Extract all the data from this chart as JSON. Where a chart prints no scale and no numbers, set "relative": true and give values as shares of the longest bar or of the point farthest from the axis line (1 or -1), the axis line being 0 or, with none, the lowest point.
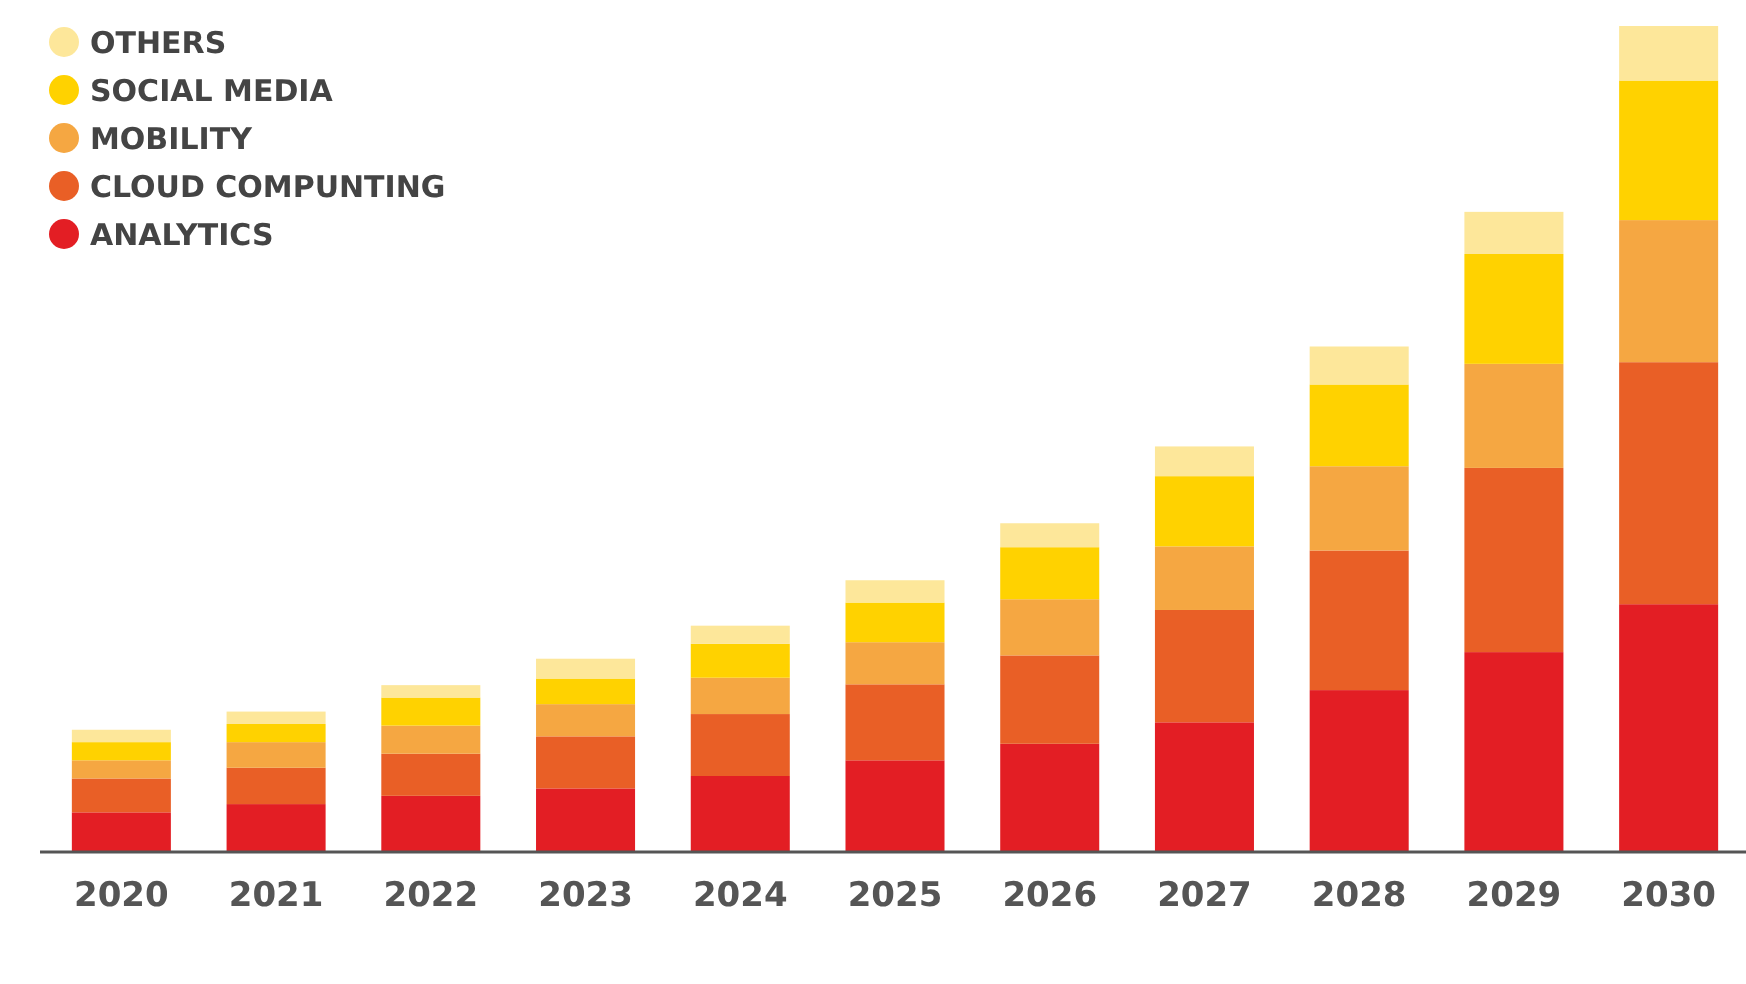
{
  "chart_data": {
    "type": "bar",
    "stacked": true,
    "relative": true,
    "legend": "top left",
    "categories": [
      "2020",
      "2021",
      "2022",
      "2023",
      "2024",
      "2025",
      "2026",
      "2027",
      "2028",
      "2029",
      "2030"
    ],
    "series": [
      {
        "name": "ANALYTICS",
        "color": "#e31e24",
        "values": [
          0.048,
          0.058,
          0.068,
          0.077,
          0.092,
          0.111,
          0.131,
          0.157,
          0.196,
          0.242,
          0.3
        ]
      },
      {
        "name": "CLOUD COMPUNTING",
        "color": "#e95f26",
        "values": [
          0.041,
          0.044,
          0.051,
          0.063,
          0.075,
          0.092,
          0.107,
          0.136,
          0.169,
          0.223,
          0.293
        ]
      },
      {
        "name": "MOBILITY",
        "color": "#f5a742",
        "values": [
          0.022,
          0.031,
          0.034,
          0.039,
          0.044,
          0.051,
          0.068,
          0.077,
          0.102,
          0.126,
          0.172
        ]
      },
      {
        "name": "SOCIAL MEDIA",
        "color": "#ffd200",
        "values": [
          0.022,
          0.022,
          0.034,
          0.031,
          0.041,
          0.048,
          0.063,
          0.085,
          0.099,
          0.133,
          0.169
        ]
      },
      {
        "name": "OTHERS",
        "color": "#fde79a",
        "values": [
          0.015,
          0.015,
          0.015,
          0.024,
          0.022,
          0.027,
          0.029,
          0.036,
          0.046,
          0.051,
          0.066
        ]
      }
    ]
  }
}
